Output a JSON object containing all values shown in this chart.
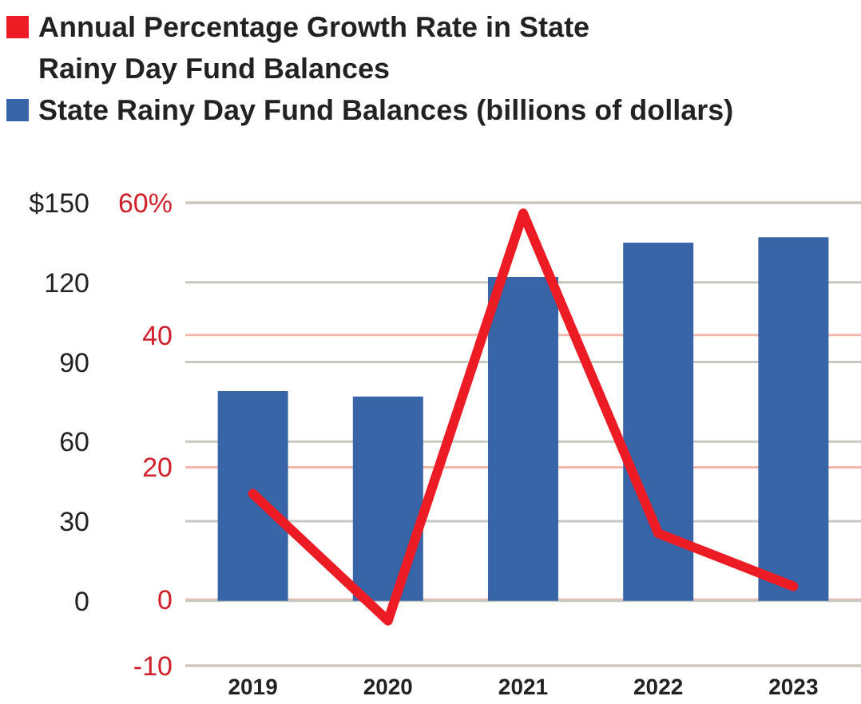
{
  "chart_data": {
    "type": "bar",
    "categories": [
      "2019",
      "2020",
      "2021",
      "2022",
      "2023"
    ],
    "series": [
      {
        "name": "Annual Percentage Growth Rate in State Rainy Day Fund Balances",
        "type": "line",
        "color": "#ed1c24",
        "values": [
          16,
          -3.2,
          58.4,
          10,
          2
        ]
      },
      {
        "name": "State Rainy Day Fund Balances (billions of dollars)",
        "axis": "y2",
        "color": "#3865a8",
        "values": [
          79,
          77,
          122,
          135,
          137
        ]
      }
    ],
    "ylim": [
      -10,
      60
    ],
    "yticks": [
      -10,
      0,
      20,
      40,
      {
        "value": 60,
        "label": "60%"
      }
    ],
    "y2lim": [
      -24.4,
      150
    ],
    "y2ticks": [
      0,
      30,
      60,
      90,
      120,
      {
        "value": 150,
        "label": "$150"
      }
    ],
    "grid": "y",
    "legend": "top left",
    "marker": "none",
    "line_style": "solid"
  }
}
